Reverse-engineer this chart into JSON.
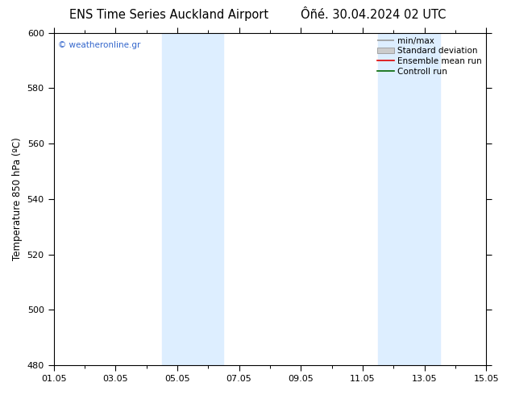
{
  "title_left": "ENS Time Series Auckland Airport",
  "title_right": "Ôñé. 30.04.2024 02 UTC",
  "ylabel": "Temperature 850 hPa (ºC)",
  "ylim": [
    480,
    600
  ],
  "yticks": [
    480,
    500,
    520,
    540,
    560,
    580,
    600
  ],
  "xlim": [
    0,
    14
  ],
  "xtick_labels": [
    "01.05",
    "03.05",
    "05.05",
    "07.05",
    "09.05",
    "11.05",
    "13.05",
    "15.05"
  ],
  "xtick_positions": [
    0,
    2,
    4,
    6,
    8,
    10,
    12,
    14
  ],
  "shaded_bands": [
    {
      "x_start": 3.5,
      "x_end": 5.5,
      "color": "#ddeeff"
    },
    {
      "x_start": 10.5,
      "x_end": 12.5,
      "color": "#ddeeff"
    }
  ],
  "watermark": "© weatheronline.gr",
  "watermark_color": "#3366cc",
  "background_color": "#ffffff",
  "title_fontsize": 10.5,
  "label_fontsize": 8.5,
  "tick_fontsize": 8,
  "legend_fontsize": 7.5
}
